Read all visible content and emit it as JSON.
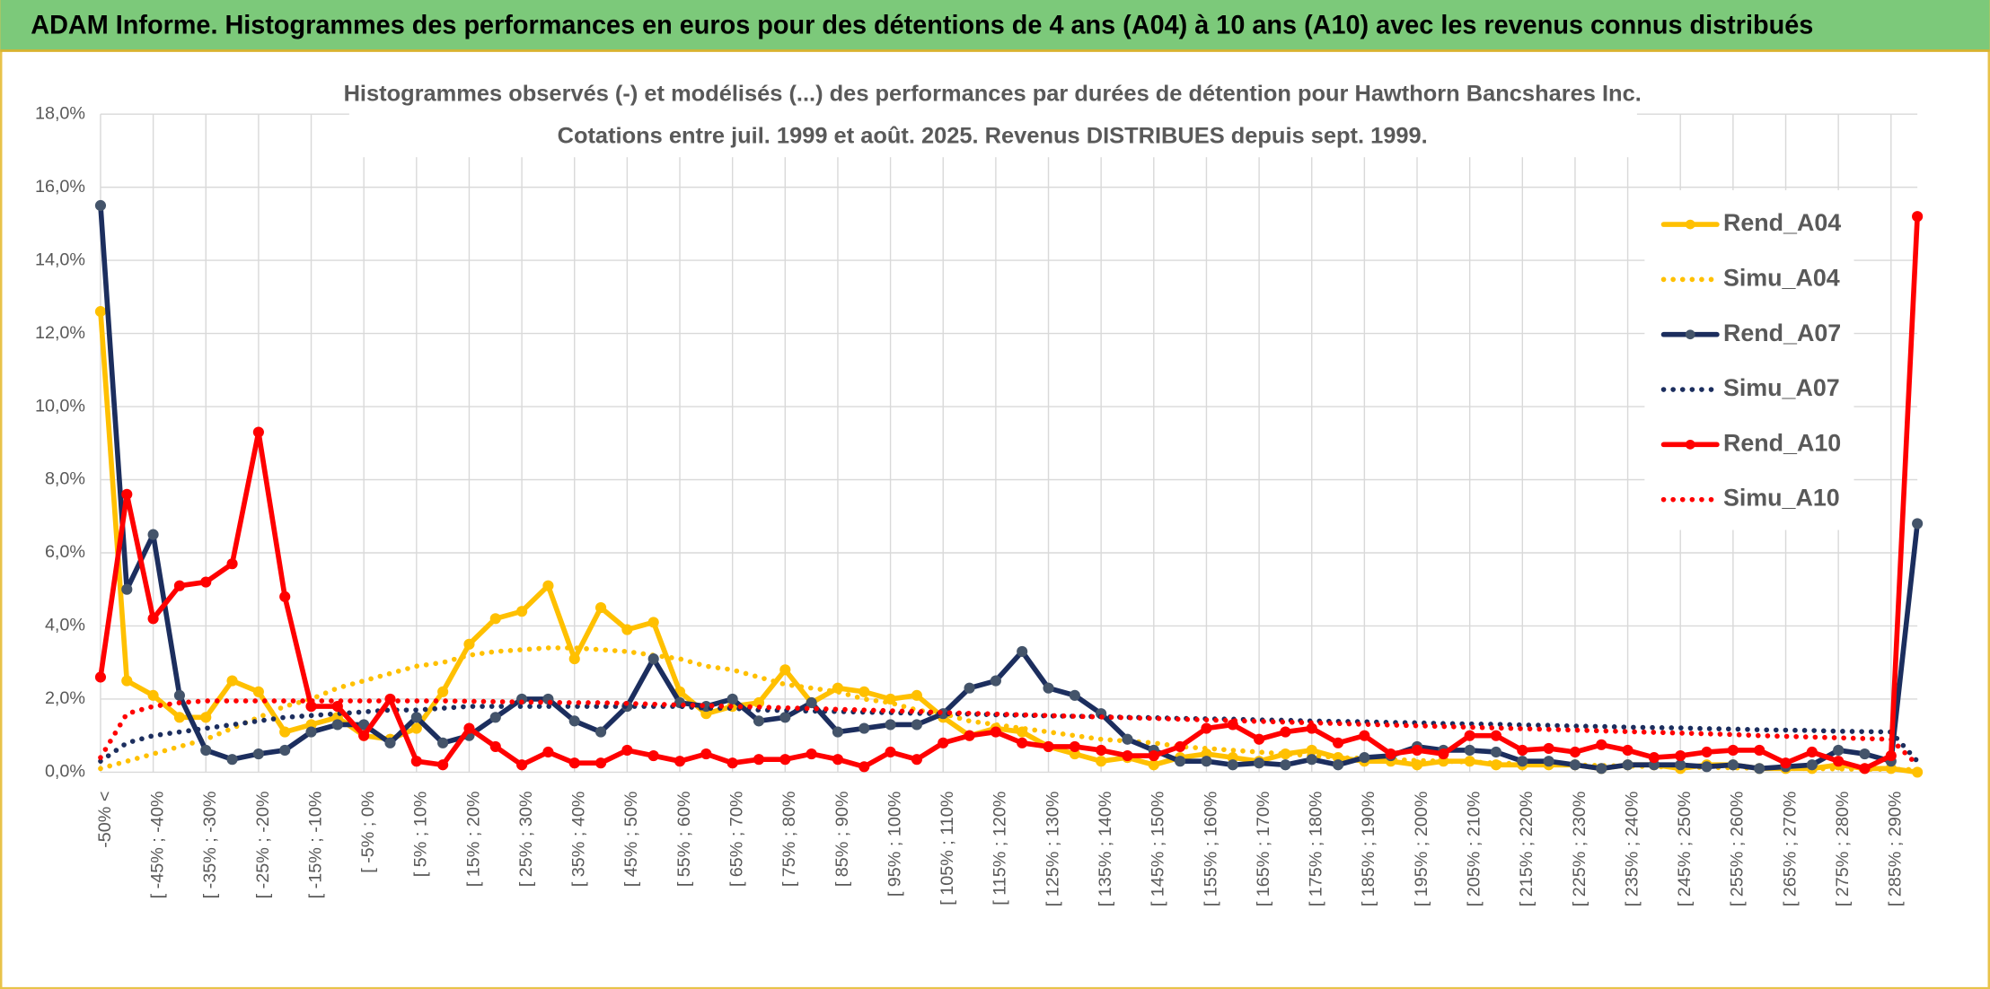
{
  "header": {
    "title": "ADAM Informe. Histogrammes des performances en euros pour des détentions de 4 ans (A04) à 10 ans (A10) avec les revenus connus distribués"
  },
  "chart_data": {
    "type": "line",
    "title": "Histogrammes observés (-) et modélisés (...) des performances par durées de détention pour Hawthorn Bancshares Inc.",
    "subtitle": "Cotations entre juil. 1999 et août. 2025. Revenus DISTRIBUES depuis sept. 1999.",
    "categories": [
      "-50% <",
      null,
      "[ -45% ; -40%",
      null,
      "[ -35% ; -30%",
      null,
      "[ -25% ; -20%",
      null,
      "[ -15% ; -10%",
      null,
      "[ -5% ; 0%",
      null,
      "[ 5% ; 10%",
      null,
      "[ 15% ; 20%",
      null,
      "[ 25% ; 30%",
      null,
      "[ 35% ; 40%",
      null,
      "[ 45% ; 50%",
      null,
      "[ 55% ; 60%",
      null,
      "[ 65% ; 70%",
      null,
      "[ 75% ; 80%",
      null,
      "[ 85% ; 90%",
      null,
      "[ 95% ; 100%",
      null,
      "[ 105% ; 110%",
      null,
      "[ 115% ; 120%",
      null,
      "[ 125% ; 130%",
      null,
      "[ 135% ; 140%",
      null,
      "[ 145% ; 150%",
      null,
      "[ 155% ; 160%",
      null,
      "[ 165% ; 170%",
      null,
      "[ 175% ; 180%",
      null,
      "[ 185% ; 190%",
      null,
      "[ 195% ; 200%",
      null,
      "[ 205% ; 210%",
      null,
      "[ 215% ; 220%",
      null,
      "[ 225% ; 230%",
      null,
      "[ 235% ; 240%",
      null,
      "[ 245% ; 250%",
      null,
      "[ 255% ; 260%",
      null,
      "[ 265% ; 270%",
      null,
      "[ 275% ; 280%",
      null,
      "[ 285% ; 290%",
      null
    ],
    "series": [
      {
        "name": "Rend_A04",
        "color": "#ffc000",
        "style": "solid",
        "values": [
          12.6,
          2.5,
          2.1,
          1.5,
          1.5,
          2.5,
          2.2,
          1.1,
          1.3,
          1.5,
          1.0,
          0.9,
          1.2,
          2.2,
          3.5,
          4.2,
          4.4,
          5.1,
          3.1,
          4.5,
          3.9,
          4.1,
          2.2,
          1.6,
          1.8,
          1.9,
          2.8,
          1.9,
          2.3,
          2.2,
          2.0,
          2.1,
          1.5,
          1.0,
          1.2,
          1.1,
          0.7,
          0.5,
          0.3,
          0.4,
          0.2,
          0.4,
          0.5,
          0.4,
          0.3,
          0.5,
          0.6,
          0.4,
          0.3,
          0.3,
          0.2,
          0.3,
          0.3,
          0.2,
          0.2,
          0.2,
          0.2,
          0.1,
          0.2,
          0.2,
          0.1,
          0.2,
          0.2,
          0.1,
          0.1,
          0.1,
          0.2,
          0.1,
          0.1,
          0.0
        ]
      },
      {
        "name": "Simu_A04",
        "color": "#ffc000",
        "style": "dotted",
        "values": [
          0.1,
          0.3,
          0.5,
          0.7,
          0.9,
          1.2,
          1.5,
          1.8,
          2.0,
          2.3,
          2.5,
          2.7,
          2.9,
          3.0,
          3.2,
          3.3,
          3.35,
          3.4,
          3.4,
          3.35,
          3.3,
          3.2,
          3.1,
          2.9,
          2.8,
          2.6,
          2.4,
          2.3,
          2.2,
          2.0,
          1.9,
          1.7,
          1.6,
          1.4,
          1.3,
          1.2,
          1.1,
          1.0,
          0.9,
          0.85,
          0.8,
          0.7,
          0.65,
          0.6,
          0.55,
          0.5,
          0.45,
          0.4,
          0.38,
          0.35,
          0.32,
          0.3,
          0.28,
          0.25,
          0.23,
          0.21,
          0.2,
          0.18,
          0.17,
          0.15,
          0.14,
          0.13,
          0.12,
          0.11,
          0.1,
          0.1,
          0.09,
          0.08,
          0.08,
          0.07
        ]
      },
      {
        "name": "Rend_A07",
        "color": "#1c2e5e",
        "style": "solid",
        "marker_color": "#44546a",
        "values": [
          15.5,
          5.0,
          6.5,
          2.1,
          0.6,
          0.35,
          0.5,
          0.6,
          1.1,
          1.3,
          1.3,
          0.8,
          1.5,
          0.8,
          1.0,
          1.5,
          2.0,
          2.0,
          1.4,
          1.1,
          1.8,
          3.1,
          1.9,
          1.8,
          2.0,
          1.4,
          1.5,
          1.9,
          1.1,
          1.2,
          1.3,
          1.3,
          1.6,
          2.3,
          2.5,
          3.3,
          2.3,
          2.1,
          1.6,
          0.9,
          0.6,
          0.3,
          0.3,
          0.2,
          0.25,
          0.2,
          0.35,
          0.2,
          0.4,
          0.45,
          0.7,
          0.6,
          0.6,
          0.55,
          0.3,
          0.3,
          0.2,
          0.1,
          0.2,
          0.2,
          0.2,
          0.15,
          0.2,
          0.1,
          0.15,
          0.2,
          0.6,
          0.5,
          0.3,
          6.8
        ]
      },
      {
        "name": "Simu_A07",
        "color": "#1c2e5e",
        "style": "dotted",
        "values": [
          0.3,
          0.8,
          1.0,
          1.1,
          1.2,
          1.3,
          1.4,
          1.5,
          1.55,
          1.6,
          1.65,
          1.7,
          1.7,
          1.75,
          1.8,
          1.8,
          1.8,
          1.8,
          1.8,
          1.8,
          1.8,
          1.8,
          1.8,
          1.75,
          1.75,
          1.7,
          1.69,
          1.67,
          1.66,
          1.64,
          1.63,
          1.61,
          1.6,
          1.59,
          1.57,
          1.56,
          1.54,
          1.53,
          1.52,
          1.5,
          1.49,
          1.47,
          1.46,
          1.45,
          1.43,
          1.42,
          1.4,
          1.39,
          1.38,
          1.36,
          1.35,
          1.33,
          1.32,
          1.31,
          1.29,
          1.28,
          1.26,
          1.25,
          1.23,
          1.22,
          1.21,
          1.19,
          1.18,
          1.16,
          1.15,
          1.14,
          1.12,
          1.11,
          1.1,
          0.3
        ]
      },
      {
        "name": "Rend_A10",
        "color": "#ff0000",
        "style": "solid",
        "values": [
          2.6,
          7.6,
          4.2,
          5.1,
          5.2,
          5.7,
          9.3,
          4.8,
          1.8,
          1.8,
          1.0,
          2.0,
          0.3,
          0.2,
          1.2,
          0.7,
          0.2,
          0.55,
          0.25,
          0.25,
          0.6,
          0.45,
          0.3,
          0.5,
          0.25,
          0.35,
          0.35,
          0.5,
          0.35,
          0.15,
          0.55,
          0.35,
          0.8,
          1.0,
          1.1,
          0.8,
          0.7,
          0.7,
          0.6,
          0.45,
          0.45,
          0.7,
          1.2,
          1.3,
          0.9,
          1.1,
          1.2,
          0.8,
          1.0,
          0.5,
          0.6,
          0.5,
          1.0,
          1.0,
          0.6,
          0.65,
          0.55,
          0.75,
          0.6,
          0.4,
          0.45,
          0.55,
          0.6,
          0.6,
          0.25,
          0.55,
          0.3,
          0.1,
          0.45,
          15.2
        ]
      },
      {
        "name": "Simu_A10",
        "color": "#ff0000",
        "style": "dotted",
        "values": [
          0.4,
          1.6,
          1.8,
          1.9,
          1.95,
          1.95,
          1.95,
          1.95,
          1.95,
          1.95,
          1.95,
          1.95,
          1.95,
          1.95,
          1.94,
          1.93,
          1.92,
          1.91,
          1.9,
          1.9,
          1.88,
          1.86,
          1.84,
          1.82,
          1.8,
          1.78,
          1.76,
          1.74,
          1.72,
          1.7,
          1.68,
          1.66,
          1.63,
          1.61,
          1.59,
          1.57,
          1.55,
          1.53,
          1.51,
          1.49,
          1.47,
          1.45,
          1.43,
          1.41,
          1.39,
          1.37,
          1.35,
          1.33,
          1.31,
          1.29,
          1.27,
          1.25,
          1.23,
          1.21,
          1.19,
          1.17,
          1.15,
          1.13,
          1.11,
          1.09,
          1.07,
          1.05,
          1.03,
          1.0,
          0.98,
          0.96,
          0.94,
          0.92,
          0.9,
          0.2
        ]
      }
    ],
    "ylim": [
      0,
      18
    ],
    "yticks": [
      {
        "value": 0,
        "label": "0,0%"
      },
      {
        "value": 2,
        "label": "2,0%"
      },
      {
        "value": 4,
        "label": "4,0%"
      },
      {
        "value": 6,
        "label": "6,0%"
      },
      {
        "value": 8,
        "label": "8,0%"
      },
      {
        "value": 10,
        "label": "10,0%"
      },
      {
        "value": 12,
        "label": "12,0%"
      },
      {
        "value": 14,
        "label": "14,0%"
      },
      {
        "value": 16,
        "label": "16,0%"
      },
      {
        "value": 18,
        "label": "18,0%"
      }
    ],
    "grid": true,
    "legend": "right"
  }
}
